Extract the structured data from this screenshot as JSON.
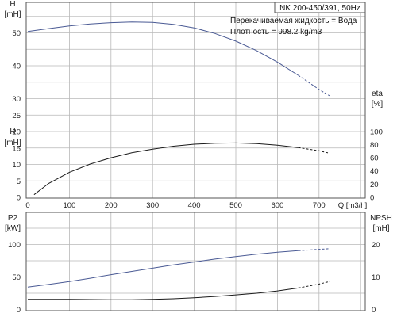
{
  "chart_data": [
    {
      "type": "line",
      "title": "NK 200-450/391, 50Hz",
      "annotations": [
        "Перекачиваемая жидкость = Вода",
        "Плотность = 998.2 kg/m3"
      ],
      "xlabel": "Q [m3/h]",
      "xlim": [
        0,
        800
      ],
      "x_ticks": [
        0,
        100,
        200,
        300,
        400,
        500,
        600,
        700
      ],
      "grid": true,
      "left_axis_head": {
        "name": "H",
        "unit": "[mH]"
      },
      "left_axis_low": {
        "name": "H",
        "unit": "[mH]"
      },
      "right_axis": {
        "name": "eta",
        "unit": "[%]"
      },
      "y_ticks_head": [
        50,
        40,
        30
      ],
      "y_ticks_low": [
        0,
        5,
        10,
        15,
        20,
        25
      ],
      "y_ticks_eta": [
        0,
        20,
        40,
        60,
        80,
        100
      ],
      "series": [
        {
          "id": "head",
          "axis": "left",
          "color": "#4a5a94",
          "x": [
            0,
            50,
            100,
            150,
            200,
            250,
            300,
            350,
            400,
            450,
            500,
            550,
            600,
            650,
            700,
            725
          ],
          "y": [
            50.4,
            51.3,
            52.1,
            52.7,
            53.1,
            53.3,
            53.2,
            52.6,
            51.5,
            49.8,
            47.5,
            44.6,
            41.1,
            37.1,
            32.8,
            30.9
          ],
          "dashed_from_x": 650
        },
        {
          "id": "efficiency",
          "axis": "right",
          "color": "#1a1a1a",
          "x": [
            15,
            50,
            100,
            150,
            200,
            250,
            300,
            350,
            400,
            450,
            500,
            550,
            600,
            650,
            700,
            725
          ],
          "y": [
            4,
            21,
            38,
            50.5,
            60,
            67.5,
            73,
            77.5,
            80.5,
            82,
            82.5,
            81.5,
            79,
            75.5,
            70.5,
            67
          ],
          "dashed_from_x": 650
        }
      ]
    },
    {
      "type": "line",
      "xlim": [
        0,
        800
      ],
      "grid": true,
      "left_axis": {
        "name": "P2",
        "unit": "[kW]"
      },
      "right_axis": {
        "name": "NPSH",
        "unit": "[mH]"
      },
      "y_ticks_left": [
        0,
        50,
        100
      ],
      "y_ticks_right": [
        0,
        10,
        20
      ],
      "series": [
        {
          "id": "power",
          "axis": "left",
          "color": "#4a5a94",
          "x": [
            0,
            50,
            100,
            150,
            200,
            250,
            300,
            350,
            400,
            450,
            500,
            550,
            600,
            650,
            700,
            725
          ],
          "y": [
            34.5,
            38.5,
            43,
            48,
            53.5,
            58.5,
            63.5,
            68.5,
            73,
            77.5,
            81.5,
            85,
            88,
            90.5,
            92.5,
            93.5
          ],
          "dashed_from_x": 650
        },
        {
          "id": "npsh",
          "axis": "right",
          "color": "#1a1a1a",
          "x": [
            0,
            50,
            100,
            150,
            200,
            250,
            300,
            350,
            400,
            450,
            500,
            550,
            600,
            650,
            700,
            725
          ],
          "y": [
            3.1,
            3.1,
            3.1,
            3.05,
            3.0,
            3.0,
            3.1,
            3.3,
            3.6,
            4.0,
            4.5,
            5.0,
            5.7,
            6.6,
            7.8,
            8.6
          ],
          "dashed_from_x": 650
        }
      ]
    }
  ]
}
